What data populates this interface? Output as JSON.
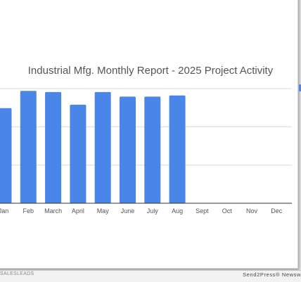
{
  "chart_data": {
    "type": "bar",
    "title": "Industrial Mfg. Monthly Report - 2025 Project Activity",
    "categories": [
      "Jan",
      "Feb",
      "March",
      "April",
      "May",
      "June",
      "July",
      "Aug",
      "Sept",
      "Oct",
      "Nov",
      "Dec"
    ],
    "values": [
      83,
      98,
      97,
      86,
      97,
      93,
      93,
      94,
      null,
      null,
      null,
      null
    ],
    "ylim": [
      0,
      100
    ],
    "grid": true,
    "legend": "none",
    "colors": {
      "bar": "#4a86e8",
      "grid": "#d9d9d9",
      "axis": "#333333"
    }
  },
  "footer": {
    "left_text": "SALESLEADS",
    "right_text": "Send2Press® Newsw"
  }
}
